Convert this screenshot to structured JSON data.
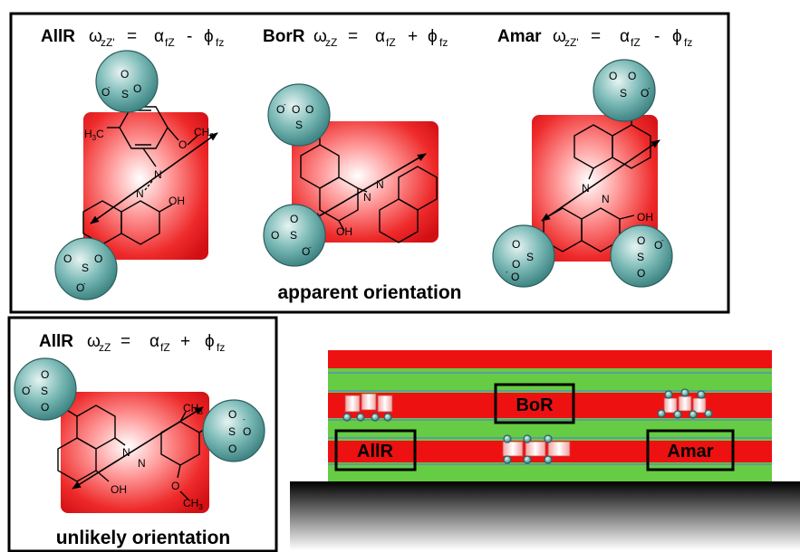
{
  "top_panel": {
    "caption": "apparent orientation",
    "molecules": [
      {
        "name": "AllR",
        "w_sym": "ω",
        "w_sub": "zZ'",
        "eq": "=",
        "a_sym": "α",
        "a_sub": "fZ",
        "op": "-",
        "p_sym": "ϕ",
        "p_sub": "fz"
      },
      {
        "name": "BorR",
        "w_sym": "ω",
        "w_sub": "zZ",
        "eq": "=",
        "a_sym": "α",
        "a_sub": "fZ",
        "op": "+",
        "p_sym": "ϕ",
        "p_sub": "fz"
      },
      {
        "name": "Amar",
        "w_sym": "ω",
        "w_sub": "zZ'",
        "eq": "=",
        "a_sym": "α",
        "a_sub": "fZ",
        "op": "-",
        "p_sym": "ϕ",
        "p_sub": "fz"
      }
    ]
  },
  "bottom_panel": {
    "caption": "unlikely orientation",
    "molecule": {
      "name": "AllR",
      "w_sym": "ω",
      "w_sub": "zZ",
      "eq": "=",
      "a_sym": "α",
      "a_sub": "fZ",
      "op": "+",
      "p_sym": "ϕ",
      "p_sub": "fz"
    }
  },
  "atoms": {
    "sulfur": "S",
    "oxygen": "O",
    "o_minus": "O",
    "minus": "-",
    "hydroxyl": "OH",
    "nitrogen": "N",
    "ch3": "CH",
    "ch3_sub": "3",
    "h3c": "H",
    "h3c_sub": "3",
    "h3c_c": "C"
  },
  "film": {
    "labels": [
      "BoR",
      "AllR",
      "Amar"
    ]
  },
  "colors": {
    "ring_red": "#e8141a",
    "ball_teal": "#5fa8a6",
    "layer_red": "#ee1111",
    "layer_green": "#66cc44"
  }
}
